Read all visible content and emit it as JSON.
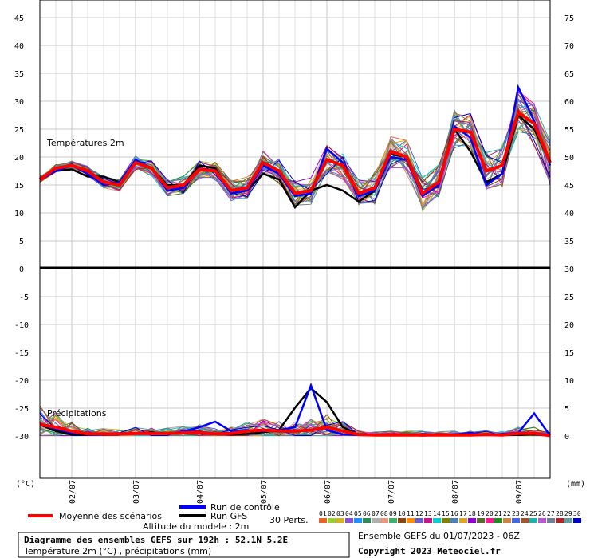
{
  "chart_data": {
    "type": "line",
    "title": "Diagramme des ensembles GEFS sur 192h : 52.1N 5.2E",
    "subtitle": "Température 2m (°C) , précipitations (mm)",
    "altitude_label": "Altitude du modele : 2m",
    "ensemble_label": "Ensemble GEFS du 01/07/2023 - 06Z",
    "copyright": "Copyright 2023 Meteociel.fr",
    "temp_panel_label": "Températures 2m",
    "precip_panel_label": "Précipitations",
    "left_unit": "(°C)",
    "right_unit": "(mm)",
    "date_labels": [
      "02/07",
      "03/07",
      "04/07",
      "05/07",
      "06/07",
      "07/07",
      "08/07",
      "09/07"
    ],
    "left_ticks_top": [
      45,
      40,
      35,
      30,
      25,
      20,
      15,
      10,
      5,
      0
    ],
    "left_ticks_bottom": [
      -5,
      -10,
      -15,
      -20,
      -25,
      -30
    ],
    "right_ticks_top": [
      75,
      70,
      65,
      60,
      55,
      50,
      45,
      40,
      35,
      30
    ],
    "right_ticks_bottom": [
      25,
      20,
      15,
      10,
      5,
      0
    ],
    "legend": {
      "mean": "Moyenne des scénarios",
      "control": "Run de contrôle",
      "gfs": "Run GFS",
      "perts_label": "30 Perts.",
      "pert_numbers": [
        "01",
        "02",
        "03",
        "04",
        "05",
        "06",
        "07",
        "08",
        "09",
        "10",
        "11",
        "12",
        "13",
        "14",
        "15",
        "16",
        "17",
        "18",
        "19",
        "20",
        "21",
        "22",
        "23",
        "24",
        "25",
        "26",
        "27",
        "28",
        "29",
        "30"
      ]
    },
    "pert_colors": [
      "#e8632a",
      "#9acd32",
      "#d2b41e",
      "#8b4fd6",
      "#1e90ff",
      "#2e8b57",
      "#b0b0b0",
      "#e9967a",
      "#3cb371",
      "#8b4513",
      "#ff8c00",
      "#6a5acd",
      "#c71585",
      "#00ced1",
      "#808000",
      "#4682b4",
      "#daa520",
      "#9400d3",
      "#556b2f",
      "#ff1493",
      "#228b22",
      "#cd853f",
      "#4169e1",
      "#a0522d",
      "#20b2aa",
      "#ba55d3",
      "#708090",
      "#b22222",
      "#5f9ea0",
      "#0000cd"
    ],
    "x_steps": 33,
    "temperature_mean": [
      16.0,
      18.0,
      18.5,
      17.5,
      15.5,
      15.0,
      19.0,
      18.0,
      14.5,
      15.0,
      17.8,
      17.5,
      14.0,
      14.5,
      19.0,
      17.5,
      13.5,
      14.0,
      19.5,
      18.5,
      13.5,
      14.5,
      21.0,
      20.0,
      13.5,
      15.5,
      25.0,
      24.5,
      17.5,
      18.5,
      28.0,
      26.0,
      19.0
    ],
    "temperature_control": [
      16.0,
      17.5,
      18.5,
      17.0,
      15.0,
      15.5,
      19.5,
      18.0,
      14.0,
      14.5,
      18.0,
      17.5,
      13.5,
      14.0,
      18.5,
      17.0,
      13.0,
      13.5,
      21.5,
      19.0,
      13.0,
      14.0,
      20.0,
      19.5,
      13.0,
      15.0,
      25.5,
      23.5,
      15.0,
      17.0,
      32.5,
      26.5,
      18.5
    ],
    "temperature_gfs": [
      16.0,
      17.5,
      17.8,
      16.5,
      16.5,
      15.5,
      19.0,
      18.0,
      15.0,
      15.0,
      18.5,
      18.0,
      13.5,
      14.0,
      17.0,
      16.0,
      11.0,
      14.0,
      15.0,
      14.0,
      12.0,
      14.0,
      20.5,
      20.0,
      13.5,
      15.0,
      25.0,
      21.0,
      15.5,
      17.0,
      27.5,
      25.0,
      19.0
    ],
    "precip_mean": [
      2.0,
      1.5,
      0.8,
      0.3,
      0.3,
      0.3,
      0.4,
      0.4,
      0.4,
      0.5,
      0.6,
      0.3,
      0.4,
      0.8,
      1.0,
      0.8,
      0.8,
      1.0,
      1.5,
      0.8,
      0.2,
      0.1,
      0.1,
      0.1,
      0.1,
      0.1,
      0.1,
      0.1,
      0.2,
      0.1,
      0.4,
      0.4,
      0.0
    ],
    "precip_control": [
      2.0,
      1.2,
      0.5,
      0.3,
      0.3,
      0.3,
      0.5,
      0.5,
      0.3,
      0.7,
      1.5,
      2.5,
      0.8,
      1.0,
      0.8,
      1.0,
      1.5,
      9.0,
      1.0,
      0.2,
      0.1,
      0.1,
      0.1,
      0.1,
      0.0,
      0.1,
      0.2,
      0.5,
      0.1,
      0.3,
      0.5,
      4.0,
      0.0
    ],
    "precip_gfs": [
      2.0,
      0.8,
      0.2,
      0.2,
      0.2,
      0.3,
      0.4,
      0.6,
      0.3,
      0.4,
      0.4,
      0.3,
      0.2,
      0.3,
      0.6,
      1.0,
      5.0,
      8.5,
      6.0,
      1.5,
      0.2,
      0.1,
      0.1,
      0.1,
      0.1,
      0.1,
      0.1,
      0.1,
      0.1,
      0.1,
      0.1,
      0.2,
      0.0
    ]
  }
}
